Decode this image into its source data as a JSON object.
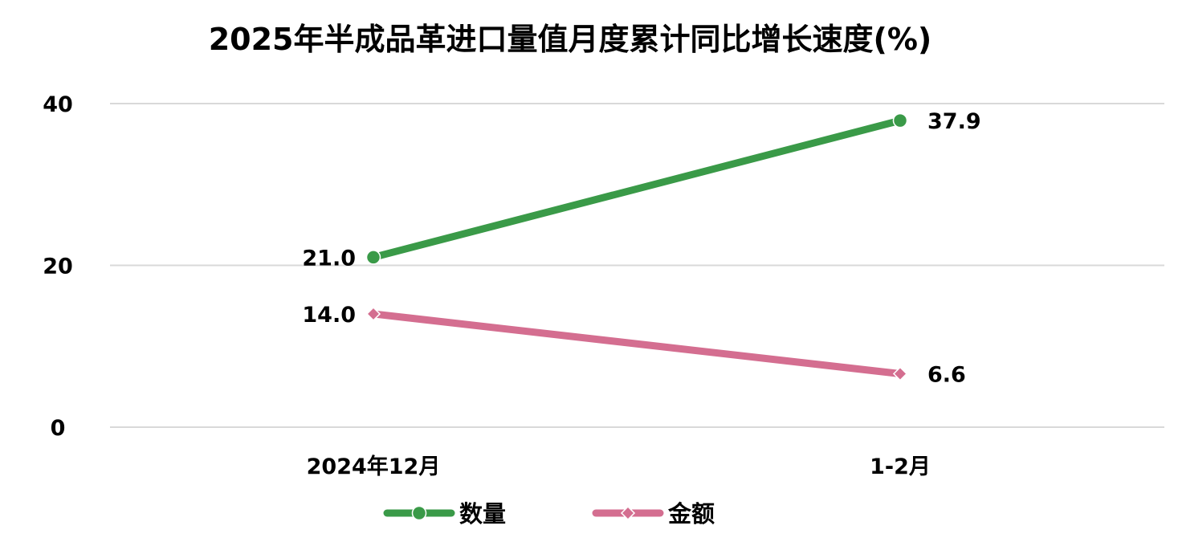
{
  "chart_data": {
    "type": "line",
    "title": "2025年半成品革进口量值月度累计同比增长速度(%)",
    "categories": [
      "2024年12月",
      "1-2月"
    ],
    "series": [
      {
        "name": "数量",
        "values": [
          21.0,
          37.9
        ],
        "labels": [
          "21.0",
          "37.9"
        ],
        "color": "#3a9a48",
        "marker": "circle"
      },
      {
        "name": "金额",
        "values": [
          14.0,
          6.6
        ],
        "labels": [
          "14.0",
          "6.6"
        ],
        "color": "#d46e90",
        "marker": "diamond"
      }
    ],
    "ylim": [
      0,
      40
    ],
    "yticks": [
      0,
      20,
      40
    ],
    "ytick_labels": [
      "0",
      "20",
      "40"
    ],
    "grid": true,
    "legend_position": "bottom",
    "colors": {
      "grid": "#d9d9d9",
      "text": "#000000"
    }
  }
}
